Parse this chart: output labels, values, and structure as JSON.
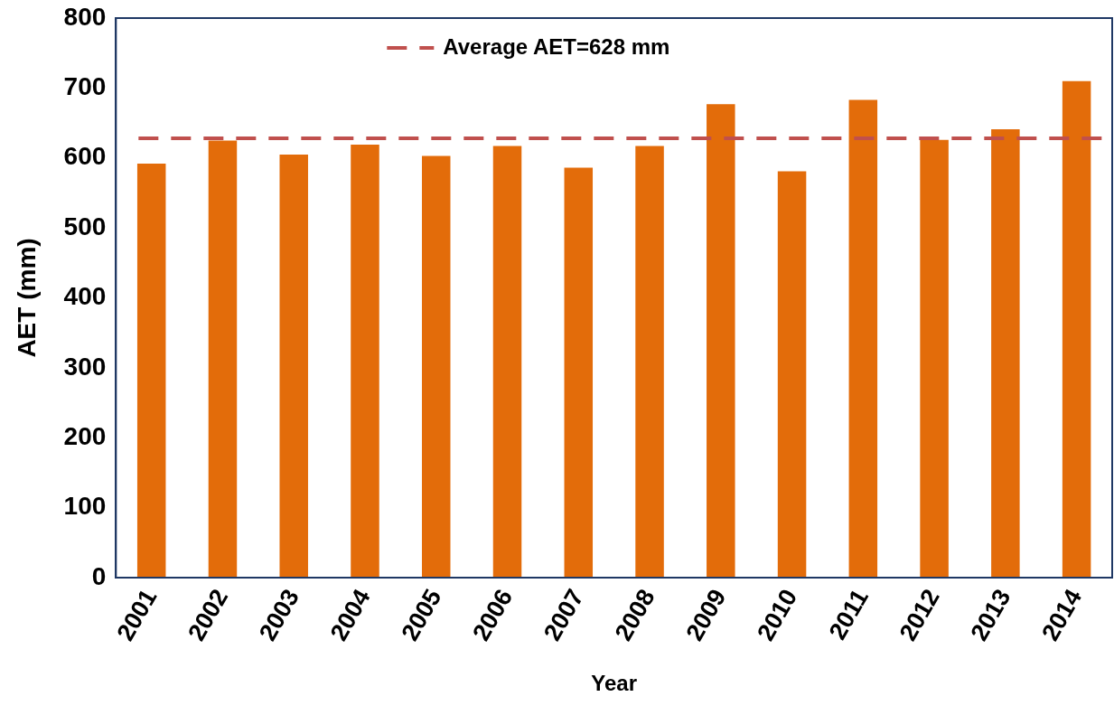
{
  "chart_data": {
    "type": "bar",
    "xlabel": "Year",
    "ylabel": "AET (mm)",
    "categories": [
      "2001",
      "2002",
      "2003",
      "2004",
      "2005",
      "2006",
      "2007",
      "2008",
      "2009",
      "2010",
      "2011",
      "2012",
      "2013",
      "2014"
    ],
    "series": [
      {
        "color": "#e36c0a",
        "values": [
          592,
          625,
          605,
          619,
          603,
          617,
          586,
          617,
          677,
          581,
          683,
          626,
          641,
          710
        ]
      }
    ],
    "ylim": [
      0,
      800
    ],
    "yticks": [
      0,
      100,
      200,
      300,
      400,
      500,
      600,
      700,
      800
    ],
    "grid": false,
    "ref_lines": [
      {
        "axis": "y",
        "value": 628,
        "label": "Average AET=628 mm",
        "color": "#c0504d",
        "line_style": "dashed"
      }
    ]
  }
}
